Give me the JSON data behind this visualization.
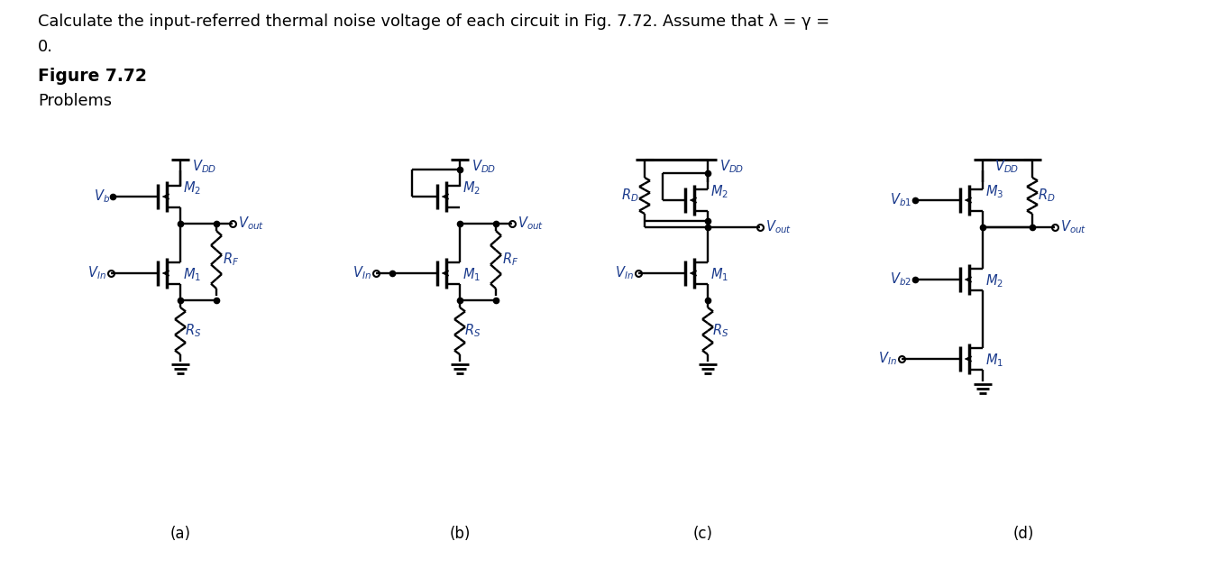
{
  "bg_color": "#ffffff",
  "text_color": "#000000",
  "label_color": "#1a3a8c",
  "circuit_color": "#000000",
  "lw": 1.7,
  "header1": "Calculate the input-referred thermal noise voltage of each circuit in Fig. 7.72. Assume that λ = γ =",
  "header2": "0.",
  "fig_label": "Figure 7.72",
  "prob_label": "Problems",
  "sub_labels": [
    "(a)",
    "(b)",
    "(c)",
    "(d)"
  ]
}
